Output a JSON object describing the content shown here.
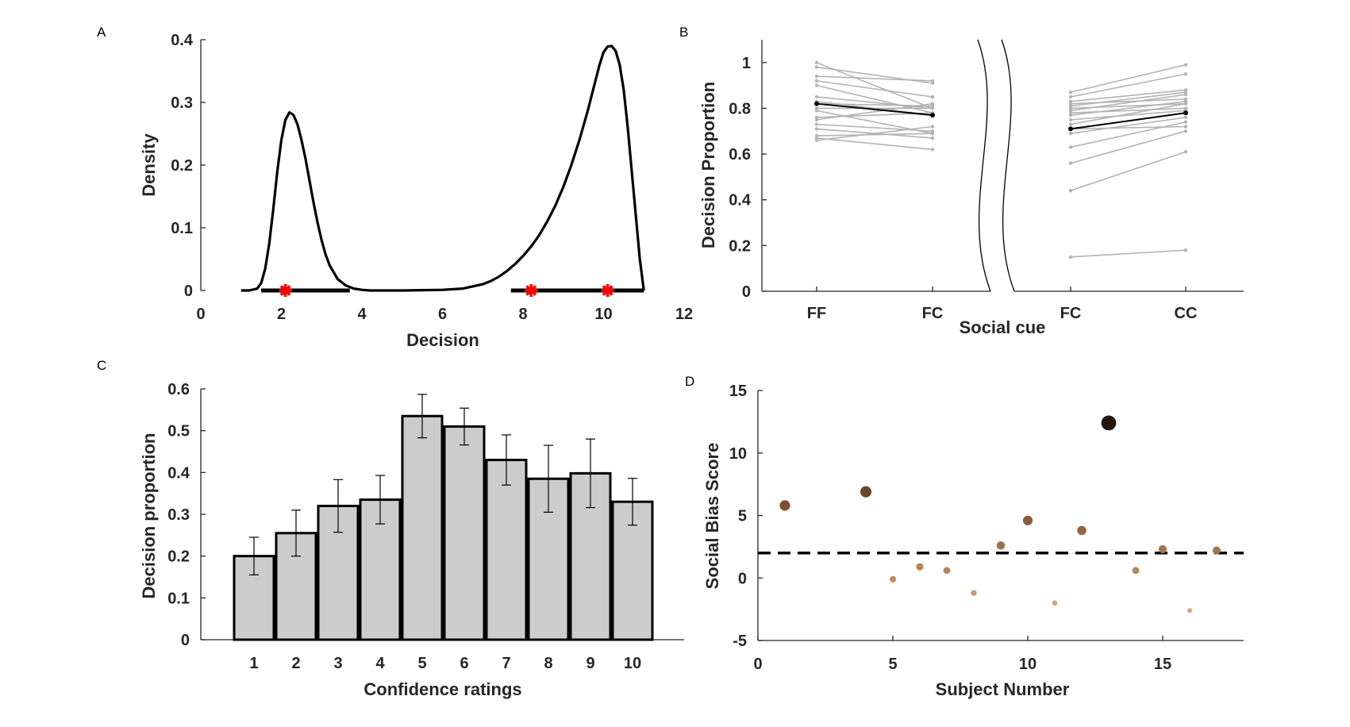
{
  "colors": {
    "axis": "#262626",
    "density_line": "#000000",
    "marker": "#ff0000",
    "subject_line": "#b3b3b3",
    "mean_line": "#000000",
    "bar_fill": "#cccccc",
    "bar_edge": "#000000",
    "threshold_line": "#000000",
    "scatter_dark": "#000000",
    "scatter_light": "#f2c08c"
  },
  "chart_data": [
    {
      "panel": "A",
      "type": "line",
      "xlabel": "Decision",
      "ylabel": "Density",
      "xlim": [
        0,
        12
      ],
      "ylim": [
        0,
        0.4
      ],
      "xticks": [
        "0",
        "2",
        "4",
        "6",
        "8",
        "10",
        "12"
      ],
      "yticks": [
        "0",
        "0.1",
        "0.2",
        "0.3",
        "0.4"
      ],
      "x": [
        1.0,
        1.2,
        1.4,
        1.5,
        1.6,
        1.7,
        1.8,
        1.9,
        2.0,
        2.1,
        2.2,
        2.3,
        2.4,
        2.5,
        2.6,
        2.7,
        2.8,
        2.9,
        3.0,
        3.1,
        3.2,
        3.4,
        3.6,
        3.8,
        4.0,
        4.2,
        4.5,
        5.0,
        5.5,
        6.0,
        6.5,
        7.0,
        7.2,
        7.4,
        7.6,
        7.8,
        8.0,
        8.2,
        8.4,
        8.6,
        8.8,
        9.0,
        9.2,
        9.4,
        9.6,
        9.8,
        9.9,
        10.0,
        10.1,
        10.2,
        10.3,
        10.4,
        10.5,
        10.6,
        10.7,
        10.8,
        10.9,
        11.0
      ],
      "y": [
        0,
        0.0,
        0.003,
        0.012,
        0.035,
        0.075,
        0.13,
        0.19,
        0.24,
        0.272,
        0.284,
        0.28,
        0.265,
        0.24,
        0.21,
        0.175,
        0.14,
        0.108,
        0.08,
        0.057,
        0.04,
        0.018,
        0.008,
        0.003,
        0.001,
        0.0,
        0.0,
        0.0,
        0.0005,
        0.001,
        0.003,
        0.01,
        0.015,
        0.022,
        0.031,
        0.042,
        0.055,
        0.07,
        0.088,
        0.11,
        0.135,
        0.165,
        0.2,
        0.24,
        0.285,
        0.335,
        0.36,
        0.38,
        0.389,
        0.39,
        0.382,
        0.36,
        0.32,
        0.26,
        0.19,
        0.12,
        0.05,
        0.0
      ],
      "markers": [
        2.1,
        8.2,
        10.1
      ],
      "ranges": [
        [
          1.5,
          3.7
        ],
        [
          7.7,
          11.0
        ]
      ]
    },
    {
      "panel": "B",
      "type": "line",
      "xlabel": "Social cue",
      "ylabel": "Decision Proportion",
      "ylim": [
        0,
        1.1
      ],
      "yticks": [
        "0",
        "0.2",
        "0.4",
        "0.6",
        "0.8",
        "1"
      ],
      "groups": [
        {
          "categories": [
            "FF",
            "FC"
          ],
          "subjects": [
            [
              1.0,
              0.8
            ],
            [
              0.98,
              0.91
            ],
            [
              0.94,
              0.92
            ],
            [
              0.92,
              0.85
            ],
            [
              0.9,
              0.78
            ],
            [
              0.85,
              0.8
            ],
            [
              0.83,
              0.77
            ],
            [
              0.82,
              0.81
            ],
            [
              0.8,
              0.8
            ],
            [
              0.79,
              0.69
            ],
            [
              0.76,
              0.78
            ],
            [
              0.75,
              0.82
            ],
            [
              0.73,
              0.7
            ],
            [
              0.71,
              0.67
            ],
            [
              0.68,
              0.69
            ],
            [
              0.67,
              0.62
            ],
            [
              0.66,
              0.72
            ]
          ],
          "mean": [
            0.82,
            0.77
          ]
        },
        {
          "categories": [
            "FC",
            "CC"
          ],
          "subjects": [
            [
              0.87,
              0.99
            ],
            [
              0.85,
              0.95
            ],
            [
              0.83,
              0.88
            ],
            [
              0.82,
              0.84
            ],
            [
              0.81,
              0.87
            ],
            [
              0.8,
              0.82
            ],
            [
              0.79,
              0.86
            ],
            [
              0.78,
              0.8
            ],
            [
              0.77,
              0.83
            ],
            [
              0.75,
              0.79
            ],
            [
              0.73,
              0.82
            ],
            [
              0.71,
              0.72
            ],
            [
              0.69,
              0.76
            ],
            [
              0.63,
              0.74
            ],
            [
              0.56,
              0.7
            ],
            [
              0.44,
              0.61
            ],
            [
              0.15,
              0.18
            ]
          ],
          "mean": [
            0.71,
            0.78
          ]
        }
      ]
    },
    {
      "panel": "C",
      "type": "bar",
      "xlabel": "Confidence ratings",
      "ylabel": "Decision proportion",
      "ylim": [
        0,
        0.6
      ],
      "yticks": [
        "0",
        "0.1",
        "0.2",
        "0.3",
        "0.4",
        "0.5",
        "0.6"
      ],
      "categories": [
        "1",
        "2",
        "3",
        "4",
        "5",
        "6",
        "7",
        "8",
        "9",
        "10"
      ],
      "values": [
        0.2,
        0.255,
        0.32,
        0.335,
        0.535,
        0.51,
        0.43,
        0.385,
        0.398,
        0.33
      ],
      "errors": [
        0.045,
        0.055,
        0.063,
        0.058,
        0.052,
        0.044,
        0.06,
        0.08,
        0.082,
        0.056
      ]
    },
    {
      "panel": "D",
      "type": "scatter",
      "xlabel": "Subject Number",
      "ylabel": "Social Bias Score",
      "xlim": [
        0,
        18
      ],
      "ylim": [
        -5,
        15
      ],
      "xticks": [
        "0",
        "5",
        "10",
        "15"
      ],
      "yticks": [
        "-5",
        "0",
        "5",
        "10",
        "15"
      ],
      "threshold": 2,
      "points": [
        {
          "x": 1,
          "y": 5.8
        },
        {
          "x": 4,
          "y": 6.9
        },
        {
          "x": 5,
          "y": -0.1
        },
        {
          "x": 6,
          "y": 0.9
        },
        {
          "x": 7,
          "y": 0.6
        },
        {
          "x": 8,
          "y": -1.2
        },
        {
          "x": 9,
          "y": 2.6
        },
        {
          "x": 10,
          "y": 4.6
        },
        {
          "x": 11,
          "y": -2.0
        },
        {
          "x": 12,
          "y": 3.8
        },
        {
          "x": 13,
          "y": 12.4
        },
        {
          "x": 14,
          "y": 0.6
        },
        {
          "x": 15,
          "y": 2.3
        },
        {
          "x": 16,
          "y": -2.6
        },
        {
          "x": 17,
          "y": 2.2
        }
      ]
    }
  ]
}
